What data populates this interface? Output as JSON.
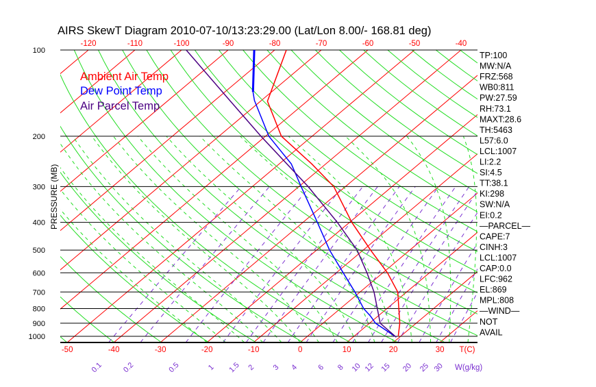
{
  "title": "AIRS SkewT Diagram 2010-07-10/13:23:29.00 (Lat/Lon 8.00/- 168.81 deg)",
  "legend": [
    {
      "label": "Ambient Air Temp",
      "color": "#ff0000"
    },
    {
      "label": "Dew Point Temp",
      "color": "#0000ff"
    },
    {
      "label": "Air Parcel Temp",
      "color": "#4b0082"
    }
  ],
  "indices": [
    "TP:100",
    "MW:N/A",
    "FRZ:568",
    "WB0:811",
    "PW:27.59",
    "RH:73.1",
    "MAXT:28.6",
    "TH:5463",
    "L57:6.0",
    "LCL:1007",
    "LI:2.2",
    "SI:4.5",
    "TT:38.1",
    "KI:298",
    "SW:N/A",
    "EI:0.2",
    "—PARCEL—",
    "CAPE:7",
    "CINH:3",
    "LCL:1007",
    "CAP:0.0",
    "LFC:962",
    "EL:869",
    "MPL:808",
    "—WIND—",
    "NOT",
    "AVAIL"
  ],
  "chart_data": {
    "type": "line",
    "title": "AIRS SkewT Diagram 2010-07-10/13:23:29.00 (Lat/Lon 8.00/- 168.81 deg)",
    "xlabel": "T(C)",
    "ylabel": "PRESSURE (MB)",
    "mixing_ratio_label": "W(g/kg)",
    "ylim": [
      1050,
      100
    ],
    "y_scale": "log",
    "pressure_ticks": [
      100,
      200,
      300,
      400,
      500,
      600,
      700,
      800,
      900,
      1000
    ],
    "bottom_temp_ticks": [
      -50,
      -40,
      -30,
      -20,
      -10,
      0,
      10,
      20,
      30
    ],
    "top_temp_ticks": [
      -120,
      -110,
      -100,
      -90,
      -80,
      -70,
      -60,
      -50,
      -40
    ],
    "mixing_ratio_ticks": [
      0.1,
      0.2,
      0.5,
      1,
      1.5,
      2,
      3,
      4,
      6,
      8,
      10,
      12,
      15,
      20,
      25,
      30
    ],
    "series": [
      {
        "name": "Ambient Air Temp",
        "color": "#ff0000",
        "pressure": [
          1000,
          900,
          700,
          600,
          500,
          400,
          300,
          250,
          200,
          151,
          100
        ],
        "temp": [
          19.5,
          16.5,
          8.1,
          1.0,
          -8.4,
          -19.5,
          -32.5,
          -43.0,
          -56.6,
          -68.5,
          -77.5
        ]
      },
      {
        "name": "Dew Point Temp",
        "color": "#0000ff",
        "pressure": [
          1000,
          900,
          850,
          800,
          700,
          600,
          500,
          400,
          300,
          250,
          200,
          150,
          140,
          100
        ],
        "temp": [
          18.8,
          11.3,
          8.4,
          5.0,
          -1.1,
          -8.5,
          -17.2,
          -26.9,
          -39.5,
          -47.4,
          -59.3,
          -71.5,
          -74,
          -84.4
        ]
      },
      {
        "name": "Air Parcel Temp",
        "color": "#4b0082",
        "pressure": [
          1007,
          900,
          700,
          600,
          500,
          400,
          300,
          200,
          150,
          100
        ],
        "temp": [
          19.3,
          12.3,
          3.0,
          -3.4,
          -11.3,
          -22.6,
          -38.0,
          -61.0,
          -76.8,
          -99.0
        ]
      }
    ],
    "grid": true
  }
}
